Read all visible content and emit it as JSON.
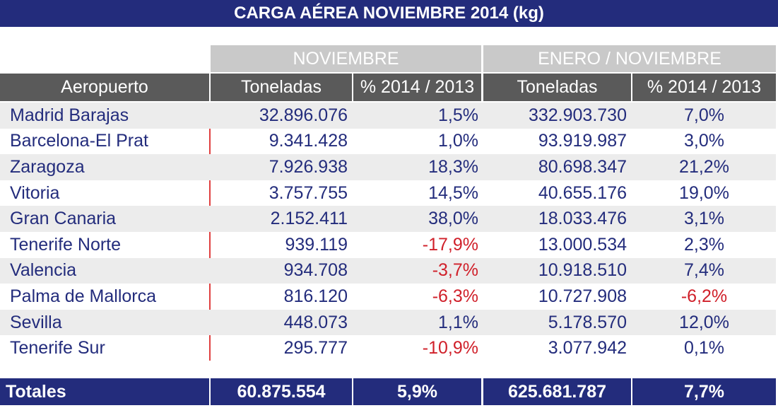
{
  "title": "CARGA AÉREA NOVIEMBRE 2014 (kg)",
  "table": {
    "groups": [
      "NOVIEMBRE",
      "ENERO / NOVIEMBRE"
    ],
    "columns": [
      "Aeropuerto",
      "Toneladas",
      "% 2014 / 2013",
      "Toneladas",
      "% 2014 / 2013"
    ],
    "rows": [
      [
        "Madrid Barajas",
        "32.896.076",
        "1,5%",
        "332.903.730",
        "7,0%"
      ],
      [
        "Barcelona-El Prat",
        "9.341.428",
        "1,0%",
        "93.919.987",
        "3,0%"
      ],
      [
        "Zaragoza",
        "7.926.938",
        "18,3%",
        "80.698.347",
        "21,2%"
      ],
      [
        "Vitoria",
        "3.757.755",
        "14,5%",
        "40.655.176",
        "19,0%"
      ],
      [
        "Gran Canaria",
        "2.152.411",
        "38,0%",
        "18.033.476",
        "3,1%"
      ],
      [
        "Tenerife Norte",
        "939.119",
        "-17,9%",
        "13.000.534",
        "2,3%"
      ],
      [
        "Valencia",
        "934.708",
        "-3,7%",
        "10.918.510",
        "7,4%"
      ],
      [
        "Palma de Mallorca",
        "816.120",
        "-6,3%",
        "10.727.908",
        "-6,2%"
      ],
      [
        "Sevilla",
        "448.073",
        "1,1%",
        "5.178.570",
        "12,0%"
      ],
      [
        "Tenerife Sur",
        "295.777",
        "-10,9%",
        "3.077.942",
        "0,1%"
      ]
    ],
    "totals": [
      "Totales",
      "60.875.554",
      "5,9%",
      "625.681.787",
      "7,7%"
    ]
  }
}
